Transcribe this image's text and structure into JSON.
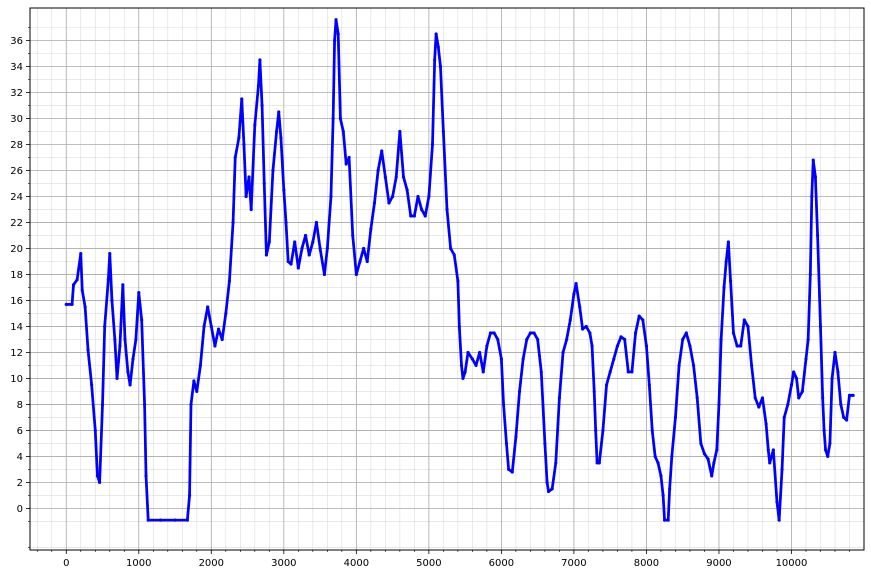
{
  "chart_data": {
    "type": "scatter",
    "title": "",
    "xlabel": "",
    "ylabel": "",
    "xlim": [
      -500,
      11000
    ],
    "ylim": [
      -3.2,
      38.5
    ],
    "x_ticks": [
      0,
      1000,
      2000,
      3000,
      4000,
      5000,
      6000,
      7000,
      8000,
      9000,
      10000
    ],
    "x_tick_labels": [
      "0",
      "1000",
      "2000",
      "3000",
      "4000",
      "5000",
      "6000",
      "7000",
      "8000",
      "9000",
      "10000"
    ],
    "y_ticks": [
      0,
      2,
      4,
      6,
      8,
      10,
      12,
      14,
      16,
      18,
      20,
      22,
      24,
      26,
      28,
      30,
      32,
      34,
      36
    ],
    "y_tick_labels": [
      "0",
      "2",
      "4",
      "6",
      "8",
      "10",
      "12",
      "14",
      "16",
      "18",
      "20",
      "22",
      "24",
      "26",
      "28",
      "30",
      "32",
      "34",
      "36"
    ],
    "grid": true,
    "marker_color": "#0000ff",
    "series": [
      {
        "name": "",
        "points": [
          [
            0,
            15.7
          ],
          [
            80,
            15.7
          ],
          [
            100,
            17.2
          ],
          [
            150,
            17.6
          ],
          [
            200,
            19.6
          ],
          [
            220,
            16.8
          ],
          [
            260,
            15.5
          ],
          [
            300,
            12.2
          ],
          [
            350,
            9.5
          ],
          [
            400,
            6.0
          ],
          [
            430,
            2.5
          ],
          [
            460,
            2.0
          ],
          [
            500,
            8.0
          ],
          [
            530,
            14.0
          ],
          [
            580,
            17.6
          ],
          [
            600,
            19.6
          ],
          [
            630,
            16.0
          ],
          [
            670,
            13.0
          ],
          [
            700,
            10.0
          ],
          [
            740,
            12.5
          ],
          [
            780,
            17.2
          ],
          [
            810,
            13.0
          ],
          [
            850,
            10.5
          ],
          [
            880,
            9.5
          ],
          [
            920,
            11.5
          ],
          [
            960,
            13.0
          ],
          [
            1000,
            16.6
          ],
          [
            1040,
            14.5
          ],
          [
            1080,
            8.0
          ],
          [
            1100,
            2.5
          ],
          [
            1130,
            -0.9
          ],
          [
            1300,
            -0.9
          ],
          [
            1500,
            -0.9
          ],
          [
            1670,
            -0.9
          ],
          [
            1700,
            1.0
          ],
          [
            1720,
            8.0
          ],
          [
            1760,
            9.8
          ],
          [
            1800,
            9.0
          ],
          [
            1850,
            11.0
          ],
          [
            1900,
            14.0
          ],
          [
            1950,
            15.5
          ],
          [
            2000,
            14.0
          ],
          [
            2050,
            12.5
          ],
          [
            2100,
            13.8
          ],
          [
            2150,
            13.0
          ],
          [
            2200,
            15.0
          ],
          [
            2250,
            17.5
          ],
          [
            2300,
            22.0
          ],
          [
            2330,
            27.0
          ],
          [
            2380,
            28.5
          ],
          [
            2420,
            31.5
          ],
          [
            2450,
            28.0
          ],
          [
            2480,
            24.0
          ],
          [
            2520,
            25.5
          ],
          [
            2550,
            23.0
          ],
          [
            2600,
            29.5
          ],
          [
            2650,
            32.5
          ],
          [
            2670,
            34.5
          ],
          [
            2700,
            31.0
          ],
          [
            2730,
            25.0
          ],
          [
            2760,
            19.5
          ],
          [
            2800,
            20.5
          ],
          [
            2850,
            26.0
          ],
          [
            2900,
            29.0
          ],
          [
            2930,
            30.5
          ],
          [
            2960,
            28.5
          ],
          [
            3000,
            24.5
          ],
          [
            3030,
            22.0
          ],
          [
            3060,
            19.0
          ],
          [
            3100,
            18.8
          ],
          [
            3150,
            20.5
          ],
          [
            3200,
            18.5
          ],
          [
            3250,
            20.0
          ],
          [
            3300,
            21.0
          ],
          [
            3350,
            19.5
          ],
          [
            3400,
            20.5
          ],
          [
            3450,
            22.0
          ],
          [
            3500,
            20.0
          ],
          [
            3560,
            18.0
          ],
          [
            3600,
            20.0
          ],
          [
            3650,
            24.0
          ],
          [
            3680,
            30.0
          ],
          [
            3700,
            36.0
          ],
          [
            3720,
            37.6
          ],
          [
            3750,
            36.5
          ],
          [
            3780,
            30.0
          ],
          [
            3820,
            29.0
          ],
          [
            3860,
            26.5
          ],
          [
            3900,
            27.0
          ],
          [
            3950,
            21.0
          ],
          [
            4000,
            18.0
          ],
          [
            4050,
            19.0
          ],
          [
            4100,
            20.0
          ],
          [
            4150,
            19.0
          ],
          [
            4200,
            21.5
          ],
          [
            4250,
            23.5
          ],
          [
            4300,
            26.0
          ],
          [
            4350,
            27.5
          ],
          [
            4400,
            25.5
          ],
          [
            4450,
            23.5
          ],
          [
            4500,
            24.0
          ],
          [
            4550,
            25.5
          ],
          [
            4600,
            29.0
          ],
          [
            4650,
            25.5
          ],
          [
            4700,
            24.5
          ],
          [
            4750,
            22.5
          ],
          [
            4800,
            22.5
          ],
          [
            4850,
            24.0
          ],
          [
            4900,
            23.0
          ],
          [
            4950,
            22.5
          ],
          [
            5000,
            24.0
          ],
          [
            5050,
            28.0
          ],
          [
            5080,
            34.5
          ],
          [
            5100,
            36.5
          ],
          [
            5130,
            35.5
          ],
          [
            5160,
            34.0
          ],
          [
            5200,
            29.0
          ],
          [
            5250,
            23.0
          ],
          [
            5300,
            20.0
          ],
          [
            5350,
            19.5
          ],
          [
            5400,
            17.5
          ],
          [
            5420,
            14.0
          ],
          [
            5450,
            11.0
          ],
          [
            5470,
            10.0
          ],
          [
            5500,
            10.5
          ],
          [
            5540,
            12.0
          ],
          [
            5600,
            11.5
          ],
          [
            5650,
            11.0
          ],
          [
            5700,
            12.0
          ],
          [
            5750,
            10.5
          ],
          [
            5800,
            12.5
          ],
          [
            5850,
            13.5
          ],
          [
            5900,
            13.5
          ],
          [
            5950,
            13.0
          ],
          [
            6000,
            11.5
          ],
          [
            6030,
            8.0
          ],
          [
            6070,
            5.0
          ],
          [
            6100,
            3.0
          ],
          [
            6150,
            2.8
          ],
          [
            6200,
            5.5
          ],
          [
            6250,
            9.0
          ],
          [
            6300,
            11.5
          ],
          [
            6350,
            13.0
          ],
          [
            6400,
            13.5
          ],
          [
            6450,
            13.5
          ],
          [
            6500,
            13.0
          ],
          [
            6550,
            10.5
          ],
          [
            6600,
            5.0
          ],
          [
            6630,
            2.0
          ],
          [
            6650,
            1.3
          ],
          [
            6700,
            1.5
          ],
          [
            6750,
            3.5
          ],
          [
            6800,
            8.5
          ],
          [
            6850,
            12.0
          ],
          [
            6900,
            13.0
          ],
          [
            6950,
            14.5
          ],
          [
            7000,
            16.5
          ],
          [
            7030,
            17.3
          ],
          [
            7080,
            15.5
          ],
          [
            7120,
            13.8
          ],
          [
            7170,
            14.0
          ],
          [
            7220,
            13.5
          ],
          [
            7250,
            12.5
          ],
          [
            7280,
            9.0
          ],
          [
            7300,
            6.0
          ],
          [
            7320,
            3.5
          ],
          [
            7350,
            3.5
          ],
          [
            7400,
            6.0
          ],
          [
            7450,
            9.5
          ],
          [
            7500,
            10.5
          ],
          [
            7550,
            11.5
          ],
          [
            7600,
            12.5
          ],
          [
            7650,
            13.2
          ],
          [
            7700,
            13.0
          ],
          [
            7750,
            10.5
          ],
          [
            7800,
            10.5
          ],
          [
            7850,
            13.5
          ],
          [
            7900,
            14.8
          ],
          [
            7950,
            14.5
          ],
          [
            8000,
            12.5
          ],
          [
            8040,
            9.5
          ],
          [
            8080,
            6.0
          ],
          [
            8120,
            4.0
          ],
          [
            8160,
            3.5
          ],
          [
            8200,
            2.5
          ],
          [
            8230,
            1.0
          ],
          [
            8250,
            -0.9
          ],
          [
            8300,
            -0.9
          ],
          [
            8320,
            1.5
          ],
          [
            8350,
            4.0
          ],
          [
            8400,
            7.0
          ],
          [
            8450,
            11.0
          ],
          [
            8500,
            13.0
          ],
          [
            8550,
            13.5
          ],
          [
            8600,
            12.5
          ],
          [
            8650,
            11.0
          ],
          [
            8700,
            8.5
          ],
          [
            8750,
            5.0
          ],
          [
            8800,
            4.2
          ],
          [
            8850,
            3.8
          ],
          [
            8900,
            2.5
          ],
          [
            8930,
            3.5
          ],
          [
            8970,
            4.5
          ],
          [
            9000,
            8.0
          ],
          [
            9030,
            13.0
          ],
          [
            9070,
            17.0
          ],
          [
            9100,
            19.0
          ],
          [
            9130,
            20.5
          ],
          [
            9160,
            17.5
          ],
          [
            9200,
            13.5
          ],
          [
            9250,
            12.5
          ],
          [
            9300,
            12.5
          ],
          [
            9350,
            14.5
          ],
          [
            9400,
            14.0
          ],
          [
            9450,
            11.0
          ],
          [
            9500,
            8.5
          ],
          [
            9550,
            7.8
          ],
          [
            9600,
            8.5
          ],
          [
            9650,
            6.5
          ],
          [
            9680,
            4.5
          ],
          [
            9700,
            3.5
          ],
          [
            9750,
            4.5
          ],
          [
            9800,
            0.5
          ],
          [
            9830,
            -0.9
          ],
          [
            9870,
            3.0
          ],
          [
            9900,
            7.0
          ],
          [
            9950,
            8.0
          ],
          [
            10000,
            9.5
          ],
          [
            10030,
            10.5
          ],
          [
            10070,
            10.0
          ],
          [
            10100,
            8.5
          ],
          [
            10150,
            9.0
          ],
          [
            10200,
            11.5
          ],
          [
            10230,
            13.0
          ],
          [
            10260,
            18.0
          ],
          [
            10280,
            24.0
          ],
          [
            10300,
            26.8
          ],
          [
            10330,
            25.5
          ],
          [
            10360,
            21.0
          ],
          [
            10400,
            14.0
          ],
          [
            10430,
            8.5
          ],
          [
            10450,
            6.0
          ],
          [
            10470,
            4.5
          ],
          [
            10500,
            4.0
          ],
          [
            10530,
            5.0
          ],
          [
            10560,
            10.0
          ],
          [
            10600,
            12.0
          ],
          [
            10640,
            10.5
          ],
          [
            10680,
            8.0
          ],
          [
            10720,
            7.0
          ],
          [
            10760,
            6.8
          ],
          [
            10800,
            8.7
          ],
          [
            10850,
            8.7
          ]
        ]
      }
    ]
  }
}
